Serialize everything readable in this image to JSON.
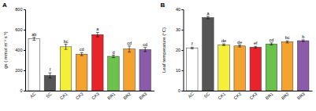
{
  "chart_data": [
    {
      "type": "bar",
      "title": "A",
      "y_label": "gs ( mmol m⁻² s⁻¹)",
      "categories": [
        "AC",
        "SC",
        "CK1",
        "CK2",
        "CK3",
        "BR1",
        "BR2",
        "BR3"
      ],
      "values": [
        510,
        150,
        432,
        360,
        552,
        338,
        410,
        405
      ],
      "errors": [
        15,
        25,
        25,
        15,
        22,
        12,
        30,
        20
      ],
      "annotations": [
        "ab",
        "f",
        "bc",
        "cd",
        "a",
        "d",
        "cd",
        "cd"
      ],
      "colors": [
        "#ffffff",
        "#555555",
        "#f5ef3a",
        "#f5a330",
        "#e8232a",
        "#6cc24a",
        "#f5a330",
        "#8b5aa8"
      ],
      "ylim": [
        0,
        800
      ],
      "yticks": [
        0,
        200,
        400,
        600,
        800
      ],
      "grid": false
    },
    {
      "type": "bar",
      "title": "B",
      "y_label": "Leaf temperature (°C)",
      "categories": [
        "AC",
        "SC",
        "CK1",
        "CK2",
        "CK3",
        "BR1",
        "BR2",
        "BR3"
      ],
      "values": [
        21,
        36,
        22.6,
        22,
        21.4,
        23,
        24,
        24.6
      ],
      "errors": [
        0.4,
        0.6,
        0.4,
        0.5,
        0.4,
        0.5,
        0.5,
        0.4
      ],
      "annotations": [
        "f",
        "a",
        "de",
        "de",
        "ef",
        "cd",
        "bc",
        "b"
      ],
      "colors": [
        "#ffffff",
        "#555555",
        "#f5ef3a",
        "#f5a330",
        "#e8232a",
        "#6cc24a",
        "#f5a330",
        "#8b5aa8"
      ],
      "ylim": [
        0,
        40
      ],
      "yticks": [
        0,
        10,
        20,
        30,
        40
      ],
      "grid": false
    }
  ]
}
